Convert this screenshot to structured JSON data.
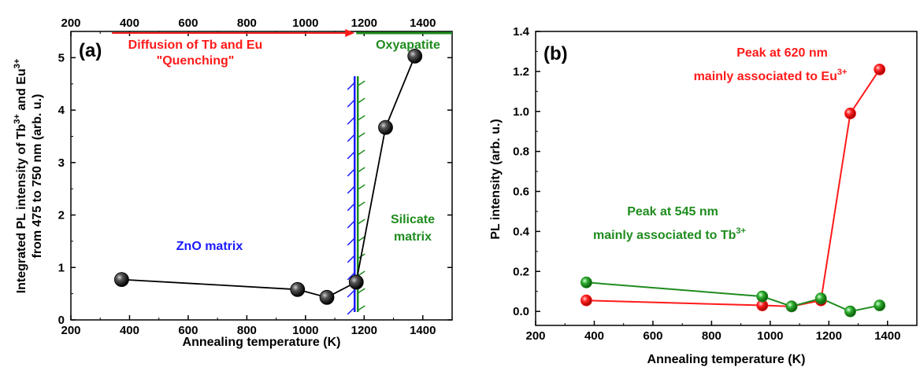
{
  "colors": {
    "red": "#ff1a1a",
    "green": "#1f8c1f",
    "blue": "#1a1aff",
    "black": "#000000"
  },
  "chart_data": [
    {
      "type": "scatter",
      "panel_label": "(a)",
      "xlabel": "Annealing temperature (K)",
      "ylabel_line1": "Integrated PL intensity of Tb",
      "ylabel_sup1": "3+",
      "ylabel_and": " and Eu",
      "ylabel_sup2": "3+",
      "ylabel_line2": "from 475 to 750 nm (arb. u.)",
      "xlim": [
        200,
        1500
      ],
      "ylim": [
        0,
        5.5
      ],
      "xticks": [
        200,
        400,
        600,
        800,
        1000,
        1200,
        1400
      ],
      "yticks": [
        0,
        1,
        2,
        3,
        4,
        5
      ],
      "top_axis_ticks": [
        200,
        400,
        600,
        800,
        1000,
        1200,
        1400
      ],
      "series": [
        {
          "x": [
            373,
            973,
            1073,
            1173,
            1273,
            1373
          ],
          "y": [
            0.77,
            0.58,
            0.43,
            0.72,
            3.67,
            5.03
          ]
        }
      ],
      "boundary_x": 1173,
      "annotations": {
        "diffusion_line1": "Diffusion of Tb and Eu",
        "diffusion_line2": "\"Quenching\"",
        "oxyapatite": "Oxyapatite",
        "silicate_line1": "Silicate",
        "silicate_line2": "matrix",
        "zno": "ZnO matrix"
      }
    },
    {
      "type": "line",
      "panel_label": "(b)",
      "xlabel": "Annealing temperature (K)",
      "ylabel": "PL intensity (arb. u.)",
      "xlim": [
        200,
        1500
      ],
      "ylim": [
        -0.07,
        1.4
      ],
      "xticks": [
        200,
        400,
        600,
        800,
        1000,
        1200,
        1400
      ],
      "yticks": [
        0.0,
        0.2,
        0.4,
        0.6,
        0.8,
        1.0,
        1.2,
        1.4
      ],
      "ytick_labels": [
        "0.0",
        "0.2",
        "0.4",
        "0.6",
        "0.8",
        "1.0",
        "1.2",
        "1.4"
      ],
      "series": [
        {
          "color": "#ff1a1a",
          "x": [
            373,
            973,
            1073,
            1173,
            1273,
            1373
          ],
          "y": [
            0.055,
            0.03,
            0.025,
            0.055,
            0.99,
            1.21
          ]
        },
        {
          "color": "#1f8c1f",
          "x": [
            373,
            973,
            1073,
            1173,
            1273,
            1373
          ],
          "y": [
            0.145,
            0.075,
            0.025,
            0.065,
            0.0,
            0.03
          ]
        }
      ],
      "annotations": {
        "red_line1": "Peak at 620 nm",
        "red_line2": "mainly associated to Eu",
        "red_sup": "3+",
        "green_line1": "Peak at 545 nm",
        "green_line2": "mainly associated to Tb",
        "green_sup": "3+"
      }
    }
  ]
}
